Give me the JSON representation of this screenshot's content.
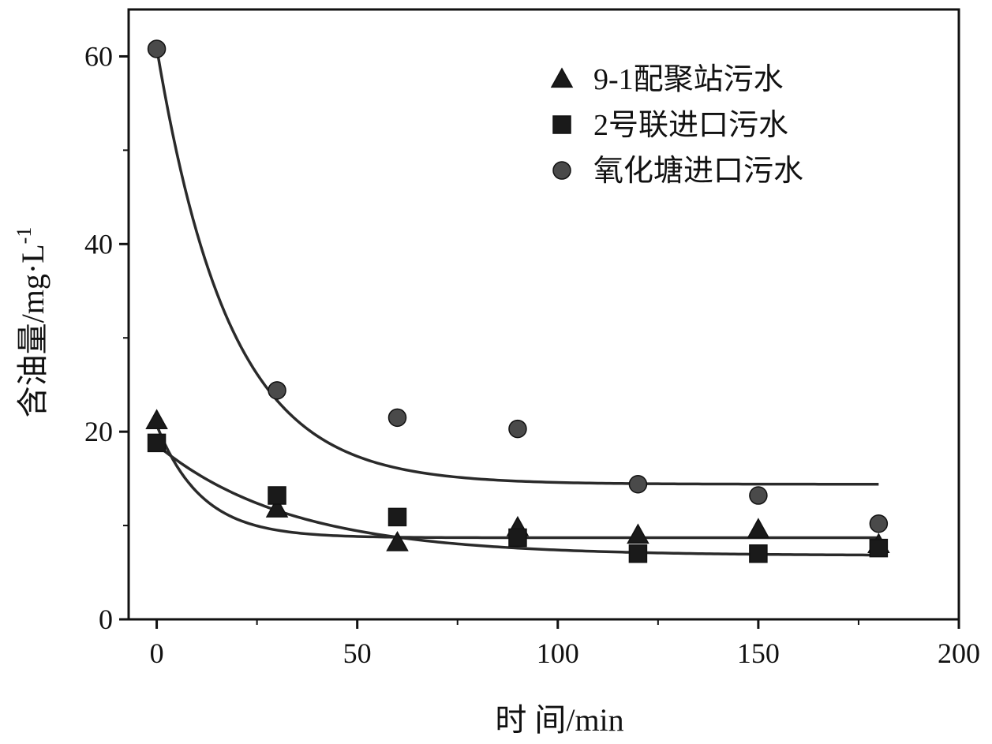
{
  "chart_data": {
    "type": "scatter",
    "xlabel": "时 间/min",
    "ylabel_main": "含油量/mg·L",
    "ylabel_sup": "-1",
    "xlim": [
      -7,
      200
    ],
    "ylim": [
      0,
      65
    ],
    "xticks": [
      0,
      50,
      100,
      150,
      200
    ],
    "xtick_labels": [
      "0",
      "50",
      "100",
      "150",
      "200"
    ],
    "yticks": [
      0,
      20,
      40,
      60
    ],
    "ytick_labels": [
      "0",
      "20",
      "40",
      "60"
    ],
    "legend_position": "top-right",
    "grid": false,
    "colors": {
      "axis": "#111111",
      "marker": "#1a1a1a",
      "circle_marker": "#4a4a4a",
      "fit_line": "#2a2a2a"
    },
    "series": [
      {
        "name": "9-1配聚站污水",
        "marker": "triangle",
        "x": [
          0,
          30,
          60,
          90,
          120,
          150,
          180
        ],
        "y": [
          21.2,
          11.8,
          8.2,
          9.8,
          9.0,
          9.6,
          8.0
        ],
        "fit": {
          "a": 12.0,
          "k": 0.09,
          "c": 8.7
        }
      },
      {
        "name": "2号联进口污水",
        "marker": "square",
        "x": [
          0,
          30,
          60,
          90,
          120,
          150,
          180
        ],
        "y": [
          18.8,
          13.2,
          10.9,
          8.7,
          7.0,
          7.0,
          7.6
        ],
        "fit": {
          "a": 11.8,
          "k": 0.03,
          "c": 6.8
        }
      },
      {
        "name": "氧化塘进口污水",
        "marker": "circle",
        "x": [
          0,
          30,
          60,
          90,
          120,
          150,
          180
        ],
        "y": [
          60.8,
          24.4,
          21.5,
          20.3,
          14.4,
          13.2,
          10.2
        ],
        "fit": {
          "a": 46.5,
          "k": 0.055,
          "c": 14.4
        }
      }
    ]
  }
}
